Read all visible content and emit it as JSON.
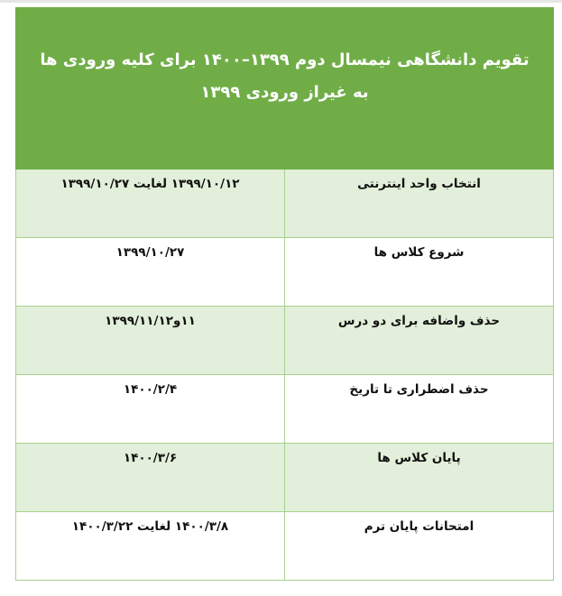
{
  "title_line1": "تقویم دانشگاهی نیمسال دوم ۱۳۹۹–۱۴۰۰ برای کلیه ورودی ها",
  "title_line2": "به غیراز ورودی ۱۳۹۹",
  "rows": [
    {
      "event": "انتخاب واحد اینترنتی",
      "date": "۱۳۹۹/۱۰/۱۲ لغایت ۱۳۹۹/۱۰/۲۷"
    },
    {
      "event": "شروع کلاس ها",
      "date": "۱۳۹۹/۱۰/۲۷"
    },
    {
      "event": "حذف واضافه برای دو درس",
      "date": "۱۱و۱۳۹۹/۱۱/۱۲"
    },
    {
      "event": "حذف اضطراری تا تاریخ",
      "date": "۱۴۰۰/۲/۴"
    },
    {
      "event": "پایان کلاس ها",
      "date": "۱۴۰۰/۳/۶"
    },
    {
      "event": "امتحانات پایان ترم",
      "date": "۱۴۰۰/۳/۸ لغایت ۱۴۰۰/۳/۲۲"
    }
  ],
  "colors": {
    "header": "#70ad47",
    "band": "#e2efda",
    "border": "#a9d08e"
  }
}
